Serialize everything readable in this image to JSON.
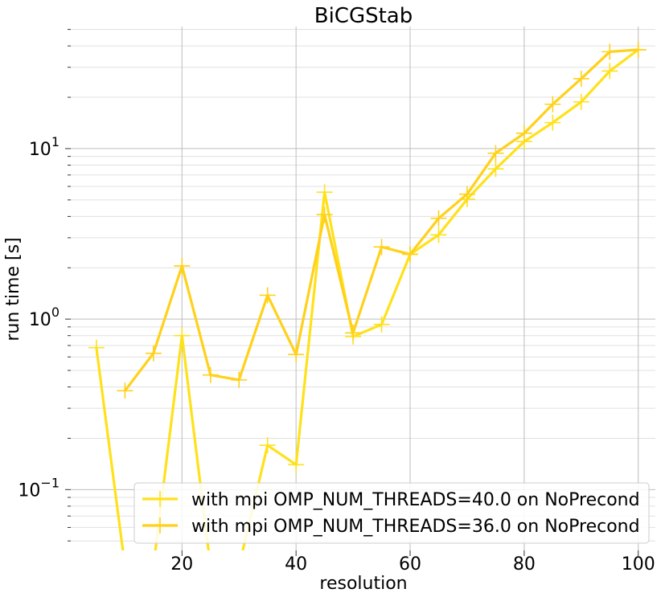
{
  "chart_data": {
    "type": "line",
    "title": "BiCGStab",
    "xlabel": "resolution",
    "ylabel": "run time [s]",
    "y_scale": "log",
    "xlim": [
      0.5,
      103
    ],
    "ylim": [
      0.044,
      52
    ],
    "x_ticks": [
      20,
      40,
      60,
      80,
      100
    ],
    "x_tick_labels": [
      "20",
      "40",
      "60",
      "80",
      "100"
    ],
    "y_ticks": [
      0.1,
      1,
      10
    ],
    "y_tick_labels": [
      {
        "base": "10",
        "exp": "−1"
      },
      {
        "base": "10",
        "exp": "0"
      },
      {
        "base": "10",
        "exp": "1"
      }
    ],
    "grid": true,
    "legend_position": "lower-right",
    "series": [
      {
        "name": "with mpi OMP_NUM_THREADS=40.0 on NoPrecond",
        "color": "#ffe11a",
        "marker": "+",
        "x": [
          5,
          10,
          15,
          20,
          25,
          30,
          35,
          40,
          45,
          50,
          55,
          60,
          65,
          70,
          75,
          80,
          85,
          90,
          95,
          100
        ],
        "y": [
          0.68,
          0.001,
          0.001,
          0.8,
          0.001,
          0.001,
          0.182,
          0.14,
          5.55,
          0.79,
          0.93,
          2.4,
          3.12,
          5.05,
          7.6,
          11.0,
          14.2,
          18.8,
          28.5,
          38.0
        ]
      },
      {
        "name": "with mpi OMP_NUM_THREADS=36.0 on NoPrecond",
        "color": "#ffd11a",
        "marker": "+",
        "x": [
          10,
          15,
          20,
          25,
          30,
          35,
          40,
          45,
          50,
          55,
          60,
          65,
          70,
          75,
          80,
          85,
          90,
          95,
          100
        ],
        "y": [
          0.38,
          0.63,
          2.05,
          0.47,
          0.44,
          1.38,
          0.62,
          4.1,
          0.83,
          2.65,
          2.4,
          3.9,
          5.4,
          9.4,
          12.3,
          18.2,
          25.7,
          37.0,
          38.0
        ]
      }
    ]
  }
}
